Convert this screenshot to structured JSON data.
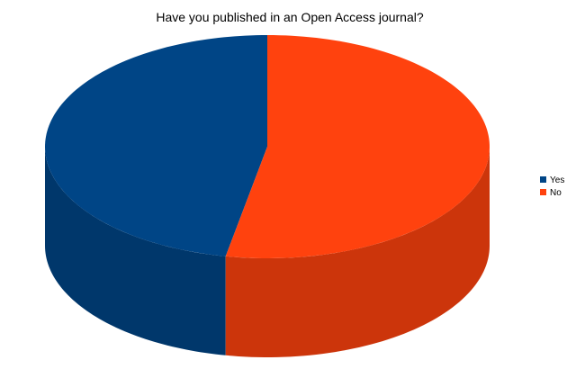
{
  "chart_data": {
    "type": "pie",
    "title": "Have you published in an Open Access journal?",
    "categories": [
      "Yes",
      "No"
    ],
    "values": [
      47,
      53
    ],
    "colors": [
      "#004586",
      "#ff420e"
    ],
    "legend_position": "right",
    "three_d": true
  }
}
